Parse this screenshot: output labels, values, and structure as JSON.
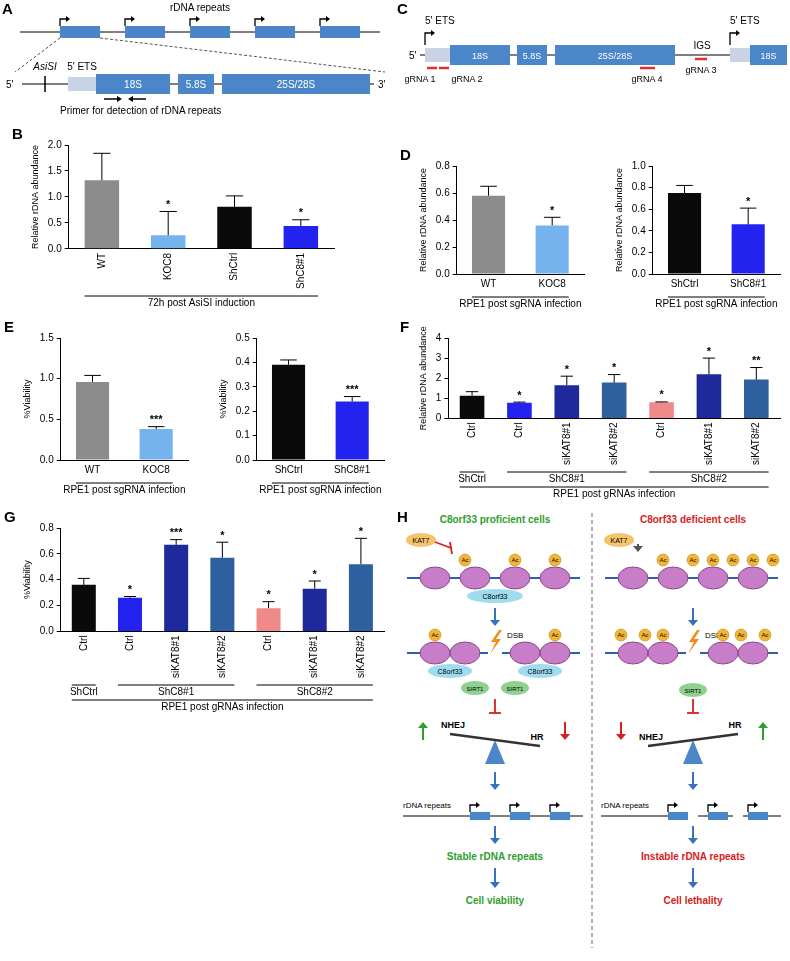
{
  "chart_data": [
    {
      "panel": "B",
      "type": "bar",
      "categories": [
        "WT",
        "KOC8",
        "ShCtrl",
        "ShC8#1"
      ],
      "values": [
        1.32,
        0.26,
        0.81,
        0.44
      ],
      "errors": [
        0.52,
        0.46,
        0.21,
        0.12
      ],
      "significance": [
        null,
        "*",
        null,
        "*"
      ],
      "colors": [
        "#8c8c8c",
        "#74b3ee",
        "#0a0a0a",
        "#2323f0"
      ],
      "ylabel": "Relative rDNA abundance",
      "xlabel": "72h post AsiSI induction",
      "ylim": [
        0,
        2
      ],
      "yticks": [
        {
          "value": 0,
          "label": "0.0"
        },
        0.5,
        {
          "value": 1,
          "label": "1.0"
        },
        1.5,
        {
          "value": 2,
          "label": "2.0"
        }
      ],
      "grid": false
    },
    {
      "panel": "D",
      "type": "bar",
      "categories": [
        "WT",
        "KOC8"
      ],
      "values": [
        0.58,
        0.36
      ],
      "errors": [
        0.07,
        0.06
      ],
      "significance": [
        null,
        "*"
      ],
      "colors": [
        "#8c8c8c",
        "#74b3ee"
      ],
      "ylabel": "Relative rDNA abundance",
      "xlabel": "RPE1 post sgRNA infection",
      "ylim": [
        0,
        0.8
      ],
      "yticks": [
        {
          "value": 0,
          "label": "0.0"
        },
        0.2,
        0.4,
        0.6,
        0.8
      ],
      "grid": false
    },
    {
      "type": "bar",
      "categories": [
        "ShCtrl",
        "ShC8#1"
      ],
      "values": [
        0.75,
        0.46
      ],
      "errors": [
        0.07,
        0.15
      ],
      "significance": [
        null,
        "*"
      ],
      "colors": [
        "#0a0a0a",
        "#2323f0"
      ],
      "ylabel": "Relative rDNA abundance",
      "xlabel": "RPE1 post sgRNA infection",
      "ylim": [
        0,
        1
      ],
      "yticks": [
        {
          "value": 0,
          "label": "0.0"
        },
        0.2,
        0.4,
        0.6,
        0.8,
        {
          "value": 1,
          "label": "1.0"
        }
      ],
      "grid": false
    },
    {
      "panel": "E",
      "type": "bar",
      "categories": [
        "WT",
        "KOC8"
      ],
      "values": [
        0.96,
        0.38
      ],
      "errors": [
        0.08,
        0.03
      ],
      "significance": [
        null,
        "***"
      ],
      "colors": [
        "#8c8c8c",
        "#74b3ee"
      ],
      "ylabel": "%Viability",
      "xlabel": "RPE1 post sgRNA infection",
      "ylim": [
        0,
        1.5
      ],
      "yticks": [
        {
          "value": 0,
          "label": "0.0"
        },
        0.5,
        {
          "value": 1,
          "label": "1.0"
        },
        1.5
      ],
      "grid": false
    },
    {
      "type": "bar",
      "categories": [
        "ShCtrl",
        "ShC8#1"
      ],
      "values": [
        0.39,
        0.24
      ],
      "errors": [
        0.02,
        0.02
      ],
      "significance": [
        null,
        "***"
      ],
      "colors": [
        "#0a0a0a",
        "#2323f0"
      ],
      "ylabel": "%Viability",
      "xlabel": "RPE1 post sgRNA infection",
      "ylim": [
        0,
        0.5
      ],
      "yticks": [
        {
          "value": 0,
          "label": "0.0"
        },
        0.1,
        0.2,
        0.3,
        0.4,
        0.5
      ],
      "grid": false
    },
    {
      "panel": "F",
      "type": "bar",
      "categories": [
        "Ctrl",
        "Ctrl",
        "siKAT8#1",
        "siKAT8#2",
        "Ctrl",
        "siKAT8#1",
        "siKAT8#2"
      ],
      "values": [
        1.13,
        0.78,
        1.65,
        1.78,
        0.8,
        2.2,
        1.93
      ],
      "errors": [
        0.2,
        0.03,
        0.45,
        0.4,
        0.02,
        0.8,
        0.6
      ],
      "significance": [
        null,
        "*",
        "*",
        "*",
        "*",
        "*",
        "**"
      ],
      "colors": [
        "#0a0a0a",
        "#2323f0",
        "#1e2a9c",
        "#2e5f9e",
        "#f08a8a",
        "#1e2a9c",
        "#2e5f9e"
      ],
      "groups": [
        {
          "label": "ShCtrl",
          "size": 1
        },
        {
          "label": "ShC8#1",
          "size": 3
        },
        {
          "label": "ShC8#2",
          "size": 3
        }
      ],
      "ylabel": "Relative rDNA abundance",
      "xlabel": "RPE1 post gRNAs infection",
      "ylim": [
        0,
        4
      ],
      "yticks": [
        0,
        1,
        2,
        3,
        4
      ],
      "grid": false
    },
    {
      "panel": "G",
      "type": "bar",
      "categories": [
        "Ctrl",
        "Ctrl",
        "siKAT8#1",
        "siKAT8#2",
        "Ctrl",
        "siKAT8#1",
        "siKAT8#2"
      ],
      "values": [
        0.36,
        0.26,
        0.67,
        0.57,
        0.18,
        0.33,
        0.52
      ],
      "errors": [
        0.05,
        0.01,
        0.04,
        0.12,
        0.05,
        0.06,
        0.2
      ],
      "significance": [
        null,
        "*",
        "***",
        "*",
        "*",
        "*",
        "*"
      ],
      "colors": [
        "#0a0a0a",
        "#2323f0",
        "#1e2a9c",
        "#2e5f9e",
        "#f08a8a",
        "#1e2a9c",
        "#2e5f9e"
      ],
      "groups": [
        {
          "label": "ShCtrl",
          "size": 1
        },
        {
          "label": "ShC8#1",
          "size": 3
        },
        {
          "label": "ShC8#2",
          "size": 3
        }
      ],
      "ylabel": "%Viability",
      "xlabel": "RPE1 post gRNAs infection",
      "ylim": [
        0,
        0.8
      ],
      "yticks": [
        {
          "value": 0,
          "label": "0.0"
        },
        0.2,
        0.4,
        0.6,
        0.8
      ],
      "grid": false
    }
  ],
  "diagrams": {
    "A": {
      "panel": "A",
      "title": "rDNA repeats",
      "site": "AsiSI",
      "region": "5' ETS",
      "segments": [
        "18S",
        "5.8S",
        "25S/28S"
      ],
      "end5": "5'",
      "end3": "3'",
      "note": "Primer for detection of rDNA repeats"
    },
    "C": {
      "panel": "C",
      "region": "5' ETS",
      "segments": [
        "18S",
        "5.8S",
        "25S/28S"
      ],
      "spacer": "IGS",
      "end5": "5'",
      "guides": [
        "gRNA 1",
        "gRNA 2",
        "gRNA 4",
        "gRNA 3"
      ]
    },
    "H": {
      "panel": "H",
      "left": {
        "title": "C8orf33 proficient cells",
        "outcome": "Stable rDNA repeats",
        "fate": "Cell viability"
      },
      "right": {
        "title": "C8orf33 deficient cells",
        "outcome": "Instable rDNA repeats",
        "fate": "Cell lethality"
      },
      "dsb": "DSB",
      "nhej": "NHEJ",
      "hr": "HR",
      "repeats": "rDNA repeats",
      "kat7": "KAT7",
      "c8orf33": "C8orf33",
      "sirt1": "SIRT1",
      "ac": "Ac"
    }
  }
}
